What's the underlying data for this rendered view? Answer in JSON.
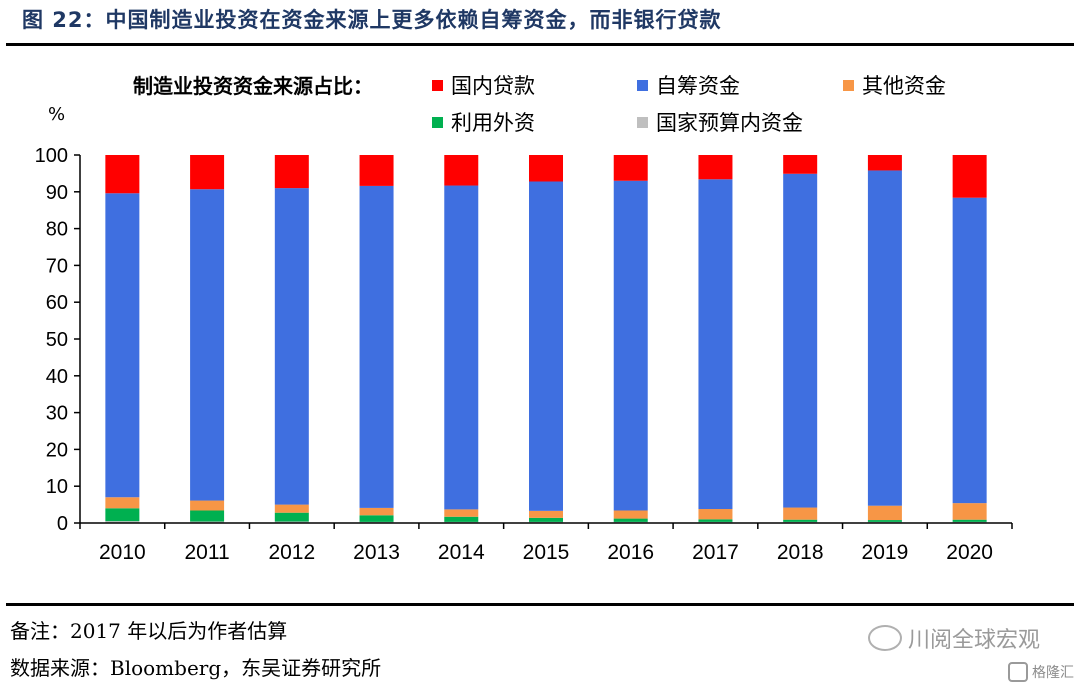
{
  "title": "图 22：中国制造业投资在资金来源上更多依赖自筹资金，而非银行贷款",
  "legend_title": "制造业投资资金来源占比：",
  "unit": "%",
  "note": "备注：2017 年以后为作者估算",
  "source": "数据来源：Bloomberg，东吴证券研究所",
  "watermark": "川阅全球宏观",
  "logo": "格隆汇",
  "chart_data": {
    "type": "bar",
    "stacked": true,
    "categories": [
      "2010",
      "2011",
      "2012",
      "2013",
      "2014",
      "2015",
      "2016",
      "2017",
      "2018",
      "2019",
      "2020"
    ],
    "ylim": [
      0,
      100
    ],
    "yticks": [
      0,
      10,
      20,
      30,
      40,
      50,
      60,
      70,
      80,
      90,
      100
    ],
    "legend_position": "top",
    "series": [
      {
        "name": "国家预算内资金",
        "color": "#bfbfbf",
        "values": [
          0.5,
          0.4,
          0.4,
          0.3,
          0.3,
          0.3,
          0.3,
          0.3,
          0.3,
          0.3,
          0.3
        ]
      },
      {
        "name": "利用外资",
        "color": "#00b050",
        "values": [
          3.5,
          3.0,
          2.4,
          1.8,
          1.4,
          1.1,
          0.9,
          0.7,
          0.6,
          0.5,
          0.6
        ]
      },
      {
        "name": "其他资金",
        "color": "#f79646",
        "values": [
          3.0,
          2.7,
          2.2,
          2.0,
          2.0,
          1.9,
          2.2,
          2.8,
          3.3,
          3.9,
          4.5
        ]
      },
      {
        "name": "自筹资金",
        "color": "#3f6fe0",
        "values": [
          82.6,
          84.6,
          86.0,
          87.5,
          88.0,
          89.5,
          89.6,
          89.6,
          90.7,
          91.1,
          83.0
        ]
      },
      {
        "name": "国内贷款",
        "color": "#ff0000",
        "values": [
          10.4,
          9.3,
          9.0,
          8.4,
          8.3,
          7.2,
          7.0,
          6.6,
          5.1,
          4.2,
          11.6
        ]
      }
    ]
  }
}
